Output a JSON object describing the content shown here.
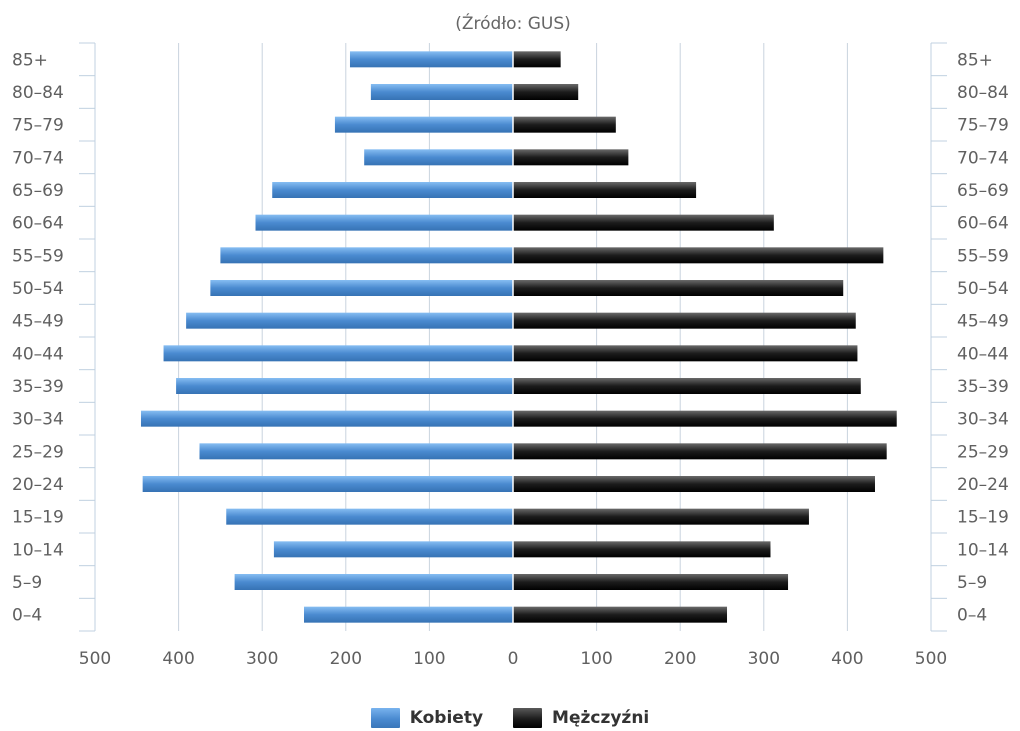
{
  "chart_data": {
    "type": "bar",
    "orientation": "horizontal-population-pyramid",
    "subtitle": "(Źródło: GUS)",
    "categories": [
      "0–4",
      "5–9",
      "10–14",
      "15–19",
      "20–24",
      "25–29",
      "30–34",
      "35–39",
      "40–44",
      "45–49",
      "50–54",
      "55–59",
      "60–64",
      "65–69",
      "70–74",
      "75–79",
      "80–84",
      "85+"
    ],
    "series": [
      {
        "name": "Kobiety",
        "side": "left",
        "color": "#4a8ad0",
        "values": [
          250,
          333,
          286,
          343,
          443,
          375,
          445,
          403,
          418,
          391,
          362,
          350,
          308,
          288,
          178,
          213,
          170,
          195
        ]
      },
      {
        "name": "Mężczyźni",
        "side": "right",
        "color": "#1c1c1c",
        "values": [
          256,
          329,
          308,
          354,
          433,
          447,
          459,
          416,
          412,
          410,
          395,
          443,
          312,
          219,
          138,
          123,
          78,
          57
        ]
      }
    ],
    "xlim": [
      -500,
      500
    ],
    "xticks": [
      "500",
      "400",
      "300",
      "200",
      "100",
      "0",
      "100",
      "200",
      "300",
      "400",
      "500"
    ],
    "grid": true,
    "legend_position": "bottom-center"
  }
}
